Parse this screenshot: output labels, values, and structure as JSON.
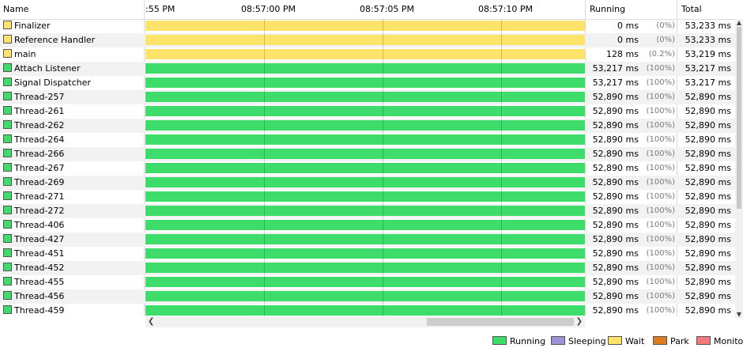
{
  "header": {
    "name": "Name",
    "running": "Running",
    "total": "Total",
    "timeline_ticks": [
      ":55 PM",
      "08:57:00 PM",
      "08:57:05 PM",
      "08:57:10 PM"
    ]
  },
  "colors": {
    "running": "#3ddc6b",
    "sleeping": "#9b93d8",
    "wait": "#fde36a",
    "park": "#e07a1f",
    "monitor": "#f27a7a"
  },
  "threads": [
    {
      "name": "Finalizer",
      "state": "wait",
      "running": "0 ms",
      "pct": "(0%)",
      "total": "53,233 ms"
    },
    {
      "name": "Reference Handler",
      "state": "wait",
      "running": "0 ms",
      "pct": "(0%)",
      "total": "53,233 ms"
    },
    {
      "name": "main",
      "state": "wait",
      "running": "128 ms",
      "pct": "(0.2%)",
      "total": "53,219 ms"
    },
    {
      "name": "Attach Listener",
      "state": "running",
      "running": "53,217 ms",
      "pct": "(100%)",
      "total": "53,217 ms"
    },
    {
      "name": "Signal Dispatcher",
      "state": "running",
      "running": "53,217 ms",
      "pct": "(100%)",
      "total": "53,217 ms"
    },
    {
      "name": "Thread-257",
      "state": "running",
      "running": "52,890 ms",
      "pct": "(100%)",
      "total": "52,890 ms"
    },
    {
      "name": "Thread-261",
      "state": "running",
      "running": "52,890 ms",
      "pct": "(100%)",
      "total": "52,890 ms"
    },
    {
      "name": "Thread-262",
      "state": "running",
      "running": "52,890 ms",
      "pct": "(100%)",
      "total": "52,890 ms"
    },
    {
      "name": "Thread-264",
      "state": "running",
      "running": "52,890 ms",
      "pct": "(100%)",
      "total": "52,890 ms"
    },
    {
      "name": "Thread-266",
      "state": "running",
      "running": "52,890 ms",
      "pct": "(100%)",
      "total": "52,890 ms"
    },
    {
      "name": "Thread-267",
      "state": "running",
      "running": "52,890 ms",
      "pct": "(100%)",
      "total": "52,890 ms"
    },
    {
      "name": "Thread-269",
      "state": "running",
      "running": "52,890 ms",
      "pct": "(100%)",
      "total": "52,890 ms"
    },
    {
      "name": "Thread-271",
      "state": "running",
      "running": "52,890 ms",
      "pct": "(100%)",
      "total": "52,890 ms"
    },
    {
      "name": "Thread-272",
      "state": "running",
      "running": "52,890 ms",
      "pct": "(100%)",
      "total": "52,890 ms"
    },
    {
      "name": "Thread-406",
      "state": "running",
      "running": "52,890 ms",
      "pct": "(100%)",
      "total": "52,890 ms"
    },
    {
      "name": "Thread-427",
      "state": "running",
      "running": "52,890 ms",
      "pct": "(100%)",
      "total": "52,890 ms"
    },
    {
      "name": "Thread-451",
      "state": "running",
      "running": "52,890 ms",
      "pct": "(100%)",
      "total": "52,890 ms"
    },
    {
      "name": "Thread-452",
      "state": "running",
      "running": "52,890 ms",
      "pct": "(100%)",
      "total": "52,890 ms"
    },
    {
      "name": "Thread-455",
      "state": "running",
      "running": "52,890 ms",
      "pct": "(100%)",
      "total": "52,890 ms"
    },
    {
      "name": "Thread-456",
      "state": "running",
      "running": "52,890 ms",
      "pct": "(100%)",
      "total": "52,890 ms"
    },
    {
      "name": "Thread-459",
      "state": "running",
      "running": "52,890 ms",
      "pct": "(100%)",
      "total": "52,890 ms"
    }
  ],
  "legend": [
    {
      "label": "Running",
      "color": "#3ddc6b"
    },
    {
      "label": "Sleeping",
      "color": "#9b93d8"
    },
    {
      "label": "Wait",
      "color": "#fde36a"
    },
    {
      "label": "Park",
      "color": "#e07a1f"
    },
    {
      "label": "Monitor",
      "color": "#f27a7a"
    }
  ],
  "scroll": {
    "left_icon": "chevron-left-icon",
    "right_icon": "chevron-right-icon",
    "up_icon": "chevron-up-icon",
    "down_icon": "chevron-down-icon"
  }
}
